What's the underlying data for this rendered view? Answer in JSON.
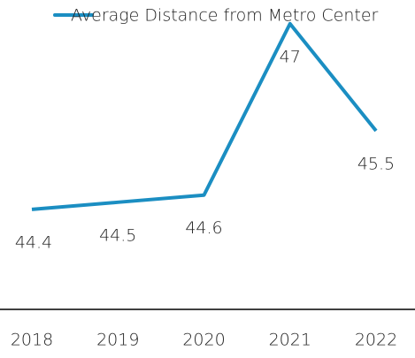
{
  "chart_data": {
    "type": "line",
    "categories": [
      "2018",
      "2019",
      "2020",
      "2021",
      "2022"
    ],
    "series": [
      {
        "name": "Average Distance from Metro Center",
        "color": "#1b8ec2",
        "values": [
          44.4,
          44.5,
          44.6,
          47,
          45.5
        ]
      }
    ],
    "ylim": [
      43,
      47.3
    ],
    "legend": "top",
    "data_labels": true
  }
}
